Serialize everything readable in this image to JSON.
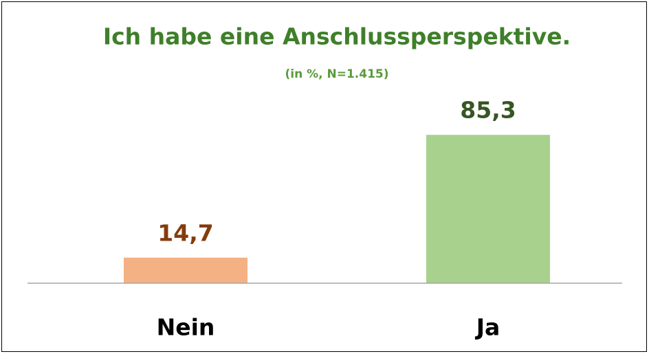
{
  "chart_data": {
    "type": "bar",
    "title": "Ich habe eine Anschlussperspektive.",
    "subtitle": "(in %, N=1.415)",
    "categories": [
      "Nein",
      "Ja"
    ],
    "values": [
      14.7,
      85.3
    ],
    "value_labels": [
      "14,7",
      "85,3"
    ],
    "colors": [
      "#f4b183",
      "#a9d18e"
    ],
    "label_colors": [
      "#843c0c",
      "#375623"
    ],
    "ylim": [
      0,
      100
    ]
  }
}
